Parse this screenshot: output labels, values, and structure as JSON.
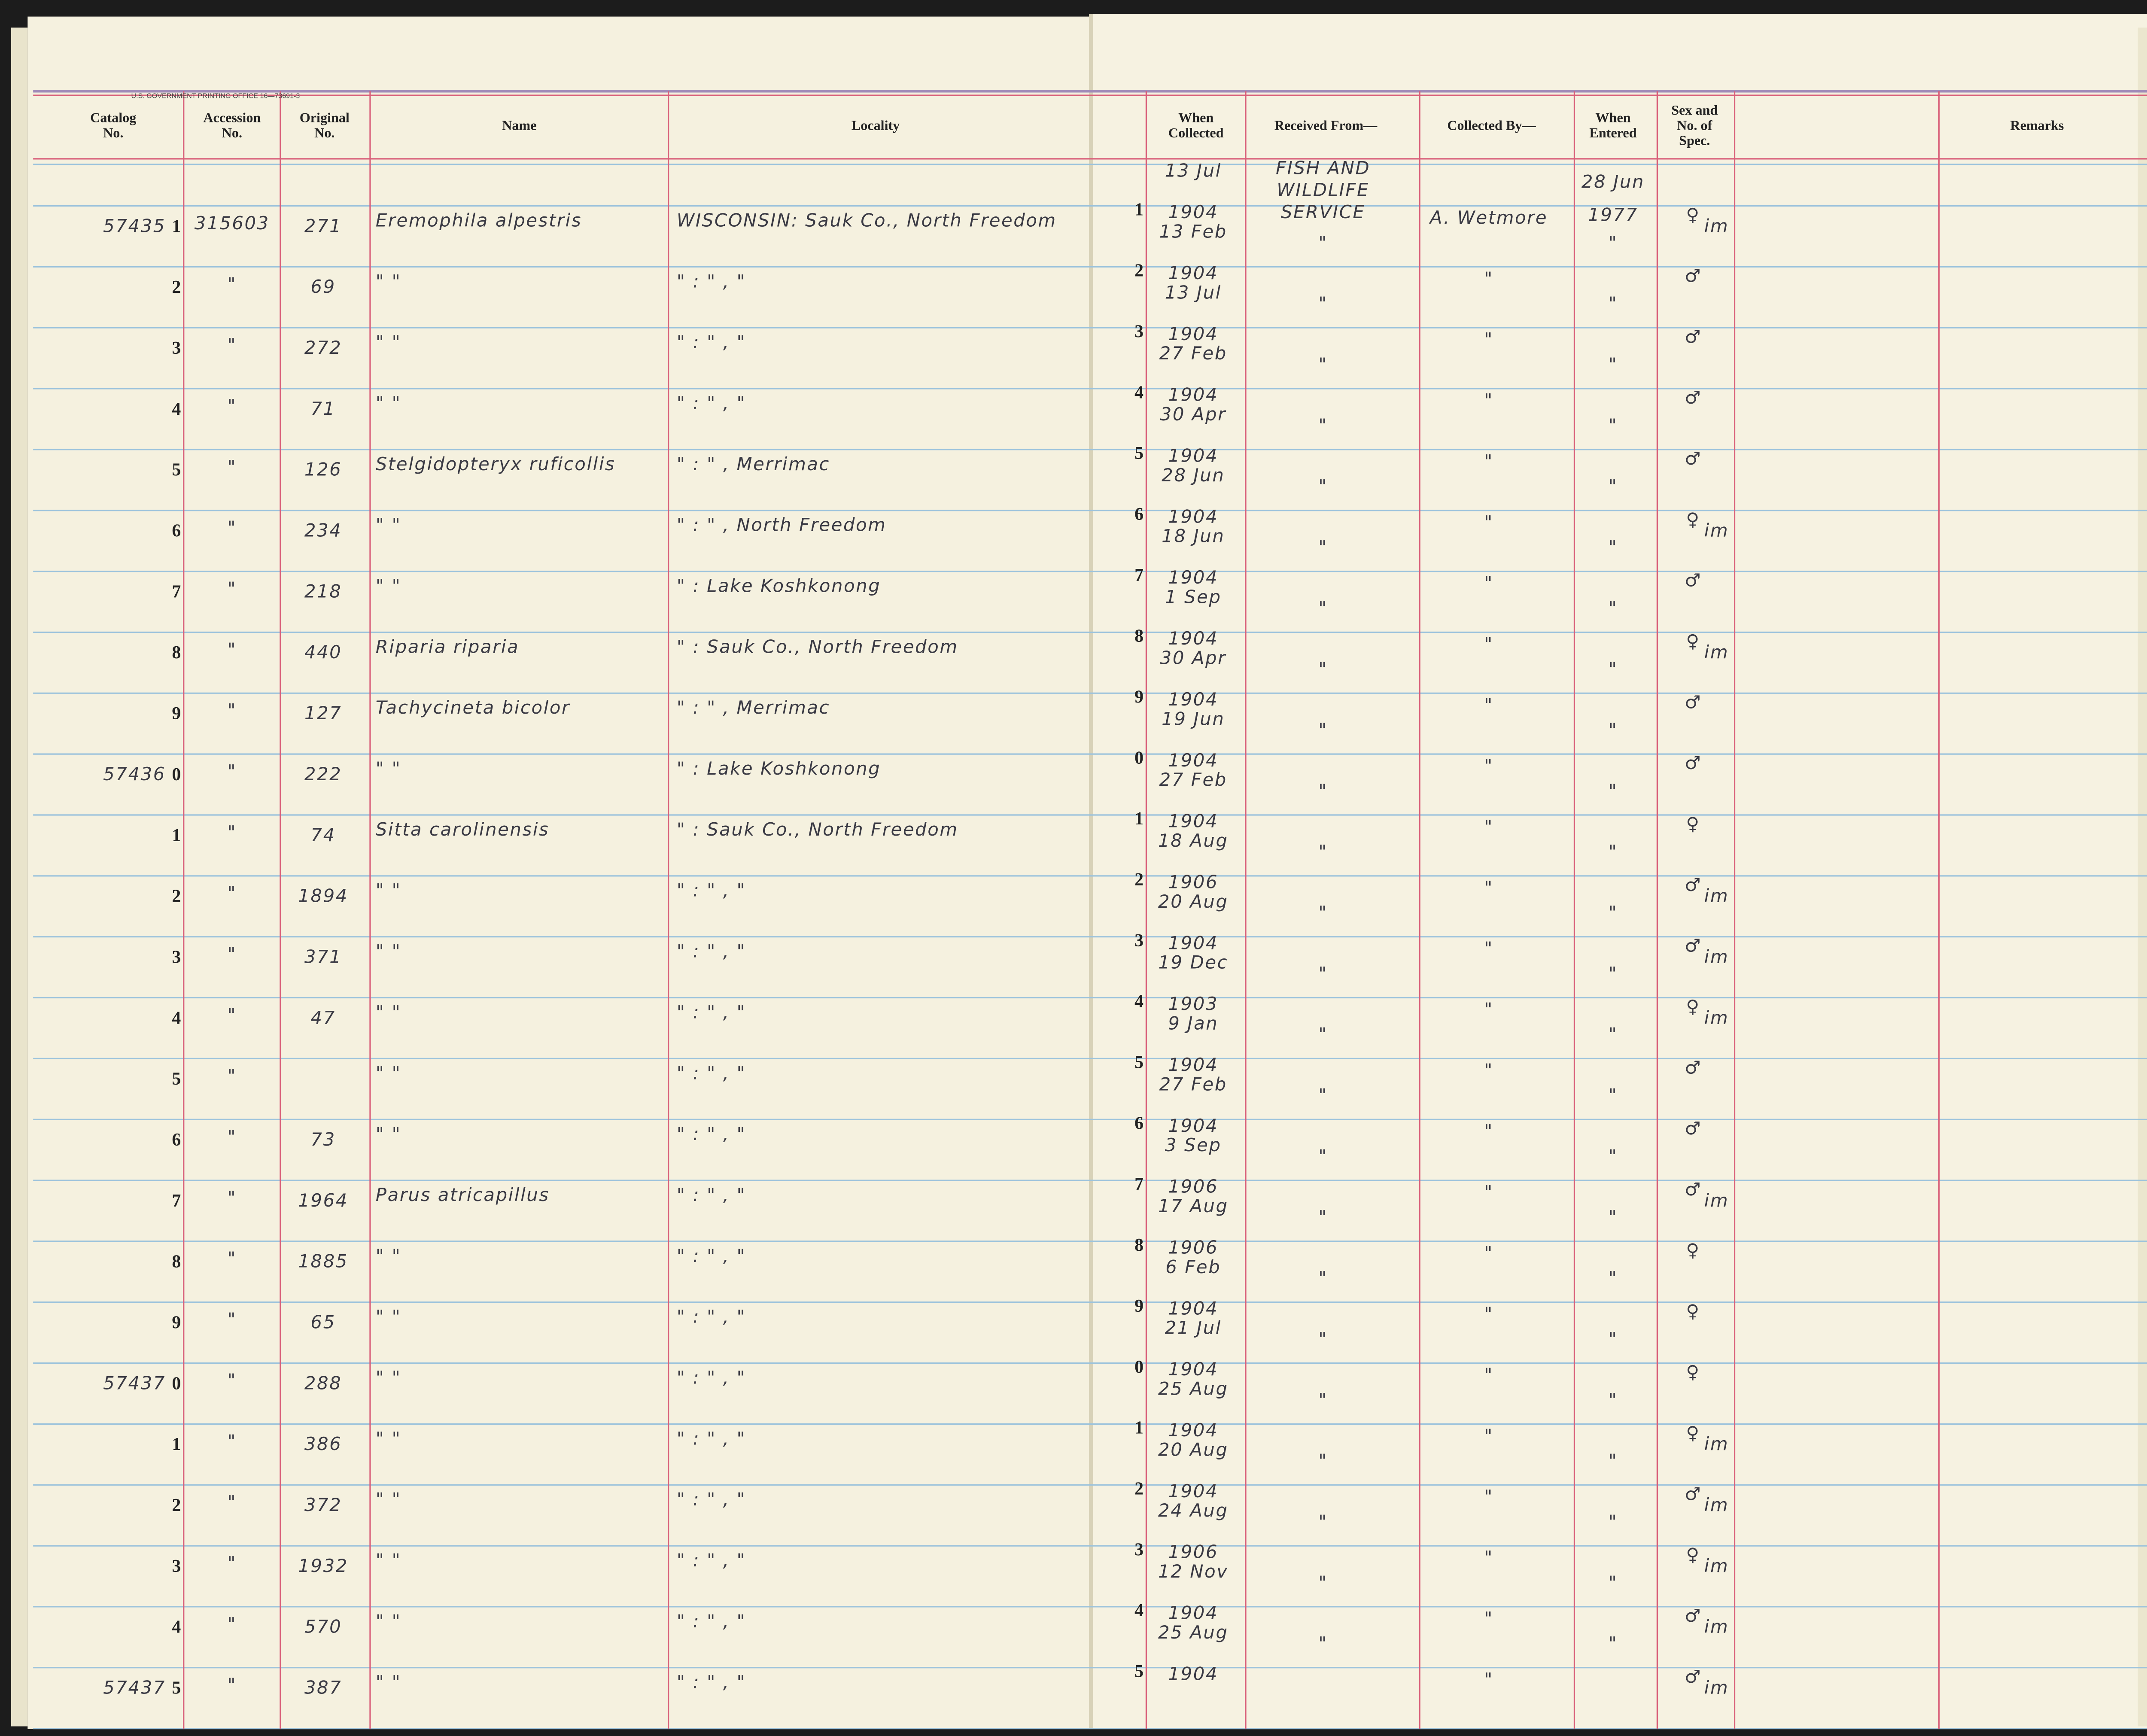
{
  "header": {
    "imprint": "U.S. GOVERNMENT PRINTING OFFICE  16—73691-3",
    "columns": [
      {
        "lines": [
          "Catalog",
          "No."
        ]
      },
      {
        "lines": [
          "Accession",
          "No."
        ]
      },
      {
        "lines": [
          "Original",
          "No."
        ]
      },
      {
        "lines": [
          "Name"
        ]
      },
      {
        "lines": [
          "Locality"
        ]
      },
      {
        "lines": [
          "When",
          "Collected"
        ]
      },
      {
        "lines": [
          "Received From—"
        ]
      },
      {
        "lines": [
          "Collected By—"
        ]
      },
      {
        "lines": [
          "When",
          "Entered"
        ]
      },
      {
        "lines": [
          "Sex and",
          "No. of",
          "Spec."
        ]
      },
      {
        "lines": [
          "Remarks"
        ]
      }
    ]
  },
  "rows": [
    {
      "catalog": "57435",
      "digit": "1",
      "accession": "315603",
      "original": "271",
      "name": "Eremophila alpestris",
      "locality": "WISCONSIN: Sauk Co., North Freedom",
      "date": "13 Jul",
      "year": "1904",
      "received": [
        "FISH AND",
        "WILDLIFE",
        "SERVICE"
      ],
      "collector": "A. Wetmore",
      "entered": [
        "28 Jun",
        "1977"
      ],
      "sex": "♀",
      "note": "im"
    },
    {
      "digit": "2",
      "accession": "\"",
      "original": "69",
      "name": "\"        \"",
      "locality": "\"    :    \" ,    \"",
      "date": "13 Feb",
      "year": "1904",
      "received": "\"",
      "collector": "\"",
      "entered": "\"",
      "sex": "♂"
    },
    {
      "digit": "3",
      "accession": "\"",
      "original": "272",
      "name": "\"        \"",
      "locality": "\"    :    \" ,    \"",
      "date": "13 Jul",
      "year": "1904",
      "received": "\"",
      "collector": "\"",
      "entered": "\"",
      "sex": "♂"
    },
    {
      "digit": "4",
      "accession": "\"",
      "original": "71",
      "name": "\"        \"",
      "locality": "\"    :    \" ,    \"",
      "date": "27 Feb",
      "year": "1904",
      "received": "\"",
      "collector": "\"",
      "entered": "\"",
      "sex": "♂"
    },
    {
      "digit": "5",
      "accession": "\"",
      "original": "126",
      "name": "Stelgidopteryx ruficollis",
      "locality": "\"    :    \" , Merrimac",
      "date": "30 Apr",
      "year": "1904",
      "received": "\"",
      "collector": "\"",
      "entered": "\"",
      "sex": "♂"
    },
    {
      "digit": "6",
      "accession": "\"",
      "original": "234",
      "name": "\"        \"",
      "locality": "\"    :    \" , North Freedom",
      "date": "28 Jun",
      "year": "1904",
      "received": "\"",
      "collector": "\"",
      "entered": "\"",
      "sex": "♀",
      "note": "im"
    },
    {
      "digit": "7",
      "accession": "\"",
      "original": "218",
      "name": "\"        \"",
      "locality": "\"    : Lake Koshkonong",
      "date": "18 Jun",
      "year": "1904",
      "received": "\"",
      "collector": "\"",
      "entered": "\"",
      "sex": "♂"
    },
    {
      "digit": "8",
      "accession": "\"",
      "original": "440",
      "name": "Riparia riparia",
      "locality": "\"    : Sauk Co., North Freedom",
      "date": "1 Sep",
      "year": "1904",
      "received": "\"",
      "collector": "\"",
      "entered": "\"",
      "sex": "♀",
      "note": "im"
    },
    {
      "digit": "9",
      "accession": "\"",
      "original": "127",
      "name": "Tachycineta bicolor",
      "locality": "\"    :    \" , Merrimac",
      "date": "30 Apr",
      "year": "1904",
      "received": "\"",
      "collector": "\"",
      "entered": "\"",
      "sex": "♂"
    },
    {
      "catalog": "57436",
      "digit": "0",
      "accession": "\"",
      "original": "222",
      "name": "\"        \"",
      "locality": "\"    : Lake Koshkonong",
      "date": "19 Jun",
      "year": "1904",
      "received": "\"",
      "collector": "\"",
      "entered": "\"",
      "sex": "♂"
    },
    {
      "digit": "1",
      "accession": "\"",
      "original": "74",
      "name": "Sitta carolinensis",
      "locality": "\"    : Sauk Co., North Freedom",
      "date": "27 Feb",
      "year": "1904",
      "received": "\"",
      "collector": "\"",
      "entered": "\"",
      "sex": "♀"
    },
    {
      "digit": "2",
      "accession": "\"",
      "original": "1894",
      "name": "\"        \"",
      "locality": "\"    :    \" ,    \"",
      "date": "18 Aug",
      "year": "1906",
      "received": "\"",
      "collector": "\"",
      "entered": "\"",
      "sex": "♂",
      "note": "im"
    },
    {
      "digit": "3",
      "accession": "\"",
      "original": "371",
      "name": "\"        \"",
      "locality": "\"    :    \" ,    \"",
      "date": "20 Aug",
      "year": "1904",
      "received": "\"",
      "collector": "\"",
      "entered": "\"",
      "sex": "♂",
      "note": "im"
    },
    {
      "digit": "4",
      "accession": "\"",
      "original": "47",
      "name": "\"        \"",
      "locality": "\"    :    \" ,    \"",
      "date": "19 Dec",
      "year": "1903",
      "received": "\"",
      "collector": "\"",
      "entered": "\"",
      "sex": "♀",
      "note": "im"
    },
    {
      "digit": "5",
      "accession": "\"",
      "name": "\"        \"",
      "locality": "\"    :    \" ,    \"",
      "date": "9 Jan",
      "year": "1904",
      "received": "\"",
      "collector": "\"",
      "entered": "\"",
      "sex": "♂"
    },
    {
      "digit": "6",
      "accession": "\"",
      "original": "73",
      "name": "\"        \"",
      "locality": "\"    :    \" ,    \"",
      "date": "27 Feb",
      "year": "1904",
      "received": "\"",
      "collector": "\"",
      "entered": "\"",
      "sex": "♂"
    },
    {
      "digit": "7",
      "accession": "\"",
      "original": "1964",
      "name": "Parus atricapillus",
      "locality": "\"    :    \" ,    \"",
      "date": "3 Sep",
      "year": "1906",
      "received": "\"",
      "collector": "\"",
      "entered": "\"",
      "sex": "♂",
      "note": "im"
    },
    {
      "digit": "8",
      "accession": "\"",
      "original": "1885",
      "name": "\"        \"",
      "locality": "\"    :    \" ,    \"",
      "date": "17 Aug",
      "year": "1906",
      "received": "\"",
      "collector": "\"",
      "entered": "\"",
      "sex": "♀"
    },
    {
      "digit": "9",
      "accession": "\"",
      "original": "65",
      "name": "\"        \"",
      "locality": "\"    :    \" ,    \"",
      "date": "6 Feb",
      "year": "1904",
      "received": "\"",
      "collector": "\"",
      "entered": "\"",
      "sex": "♀"
    },
    {
      "catalog": "57437",
      "digit": "0",
      "accession": "\"",
      "original": "288",
      "name": "\"        \"",
      "locality": "\"    :    \" ,    \"",
      "date": "21 Jul",
      "year": "1904",
      "received": "\"",
      "collector": "\"",
      "entered": "\"",
      "sex": "♀"
    },
    {
      "digit": "1",
      "accession": "\"",
      "original": "386",
      "name": "\"        \"",
      "locality": "\"    :    \" ,    \"",
      "date": "25 Aug",
      "year": "1904",
      "received": "\"",
      "collector": "\"",
      "entered": "\"",
      "sex": "♀",
      "note": "im"
    },
    {
      "digit": "2",
      "accession": "\"",
      "original": "372",
      "name": "\"        \"",
      "locality": "\"    :    \" ,    \"",
      "date": "20 Aug",
      "year": "1904",
      "received": "\"",
      "collector": "\"",
      "entered": "\"",
      "sex": "♂",
      "note": "im"
    },
    {
      "digit": "3",
      "accession": "\"",
      "original": "1932",
      "name": "\"        \"",
      "locality": "\"    :    \" ,    \"",
      "date": "24 Aug",
      "year": "1906",
      "received": "\"",
      "collector": "\"",
      "entered": "\"",
      "sex": "♀",
      "note": "im"
    },
    {
      "digit": "4",
      "accession": "\"",
      "original": "570",
      "name": "\"        \"",
      "locality": "\"    :    \" ,    \"",
      "date": "12 Nov",
      "year": "1904",
      "received": "\"",
      "collector": "\"",
      "entered": "\"",
      "sex": "♂",
      "note": "im"
    },
    {
      "catalog": "57437",
      "digit": "5",
      "accession": "\"",
      "original": "387",
      "name": "\"        \"",
      "locality": "\"    :    \" ,    \"",
      "date": "25 Aug",
      "year": "1904",
      "received": "\"",
      "collector": "\"",
      "entered": "\"",
      "sex": "♂",
      "note": "im"
    }
  ]
}
